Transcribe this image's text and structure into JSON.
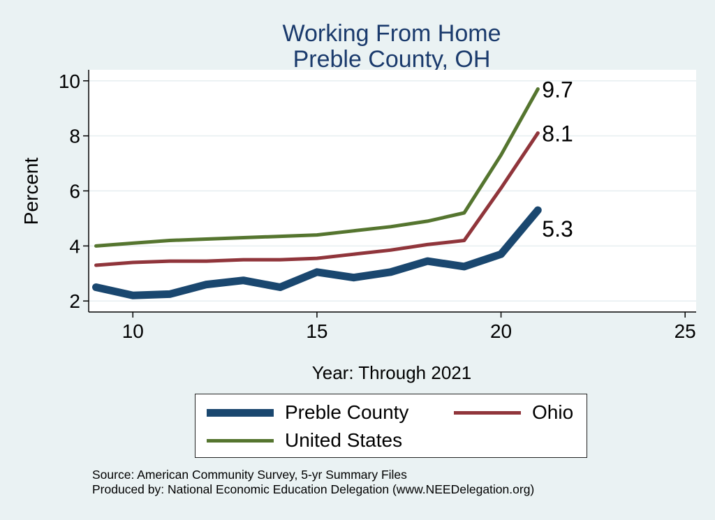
{
  "chart_data": {
    "type": "line",
    "title": [
      "Working From Home",
      "Preble County, OH"
    ],
    "xlabel": "Year: Through 2021",
    "ylabel": "Percent",
    "xlim": [
      8.8,
      25.3
    ],
    "ylim": [
      1.6,
      10.4
    ],
    "xticks": [
      10,
      15,
      20,
      25
    ],
    "yticks": [
      2,
      4,
      6,
      8,
      10
    ],
    "grid": true,
    "legend_position": "bottom",
    "x": [
      9,
      10,
      11,
      12,
      13,
      14,
      15,
      16,
      17,
      18,
      19,
      20,
      21
    ],
    "series": [
      {
        "name": "Preble County",
        "color": "#1a476f",
        "values": [
          2.5,
          2.2,
          2.25,
          2.6,
          2.75,
          2.5,
          3.05,
          2.85,
          3.05,
          3.45,
          3.25,
          3.7,
          5.3
        ],
        "end_label": "5.3"
      },
      {
        "name": "Ohio",
        "color": "#90353b",
        "values": [
          3.3,
          3.4,
          3.45,
          3.45,
          3.5,
          3.5,
          3.55,
          3.7,
          3.85,
          4.05,
          4.2,
          6.1,
          8.1
        ],
        "end_label": "8.1"
      },
      {
        "name": "United States",
        "color": "#55752f",
        "values": [
          4.0,
          4.1,
          4.2,
          4.25,
          4.3,
          4.35,
          4.4,
          4.55,
          4.7,
          4.9,
          5.2,
          7.3,
          9.7
        ],
        "end_label": "9.7"
      }
    ]
  },
  "source": {
    "line1": "Source: American Community Survey, 5-yr Summary Files",
    "line2": "Produced by: National Economic Education Delegation (www.NEEDelegation.org)"
  }
}
